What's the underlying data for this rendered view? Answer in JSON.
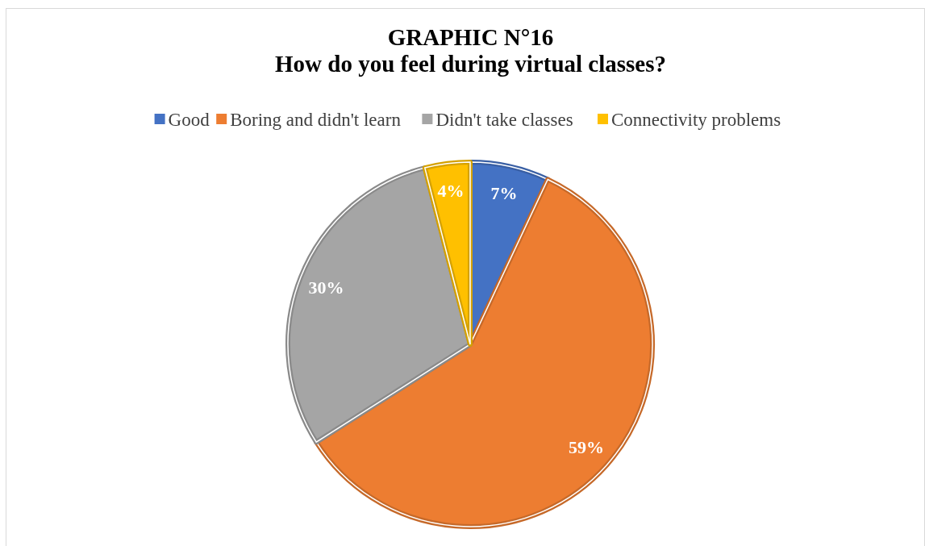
{
  "chart_data": {
    "type": "pie",
    "title": "GRAPHIC N°16\nHow do you feel during virtual classes?",
    "categories": [
      "Good",
      "Boring and didn't learn",
      "Didn't take classes",
      "Connectivity problems"
    ],
    "values": [
      7,
      59,
      30,
      4
    ],
    "colors": [
      "#4472c4",
      "#ed7d31",
      "#a5a5a5",
      "#ffc000"
    ],
    "value_labels": [
      "7%",
      "59%",
      "30%",
      "4%"
    ],
    "legend": "top"
  }
}
